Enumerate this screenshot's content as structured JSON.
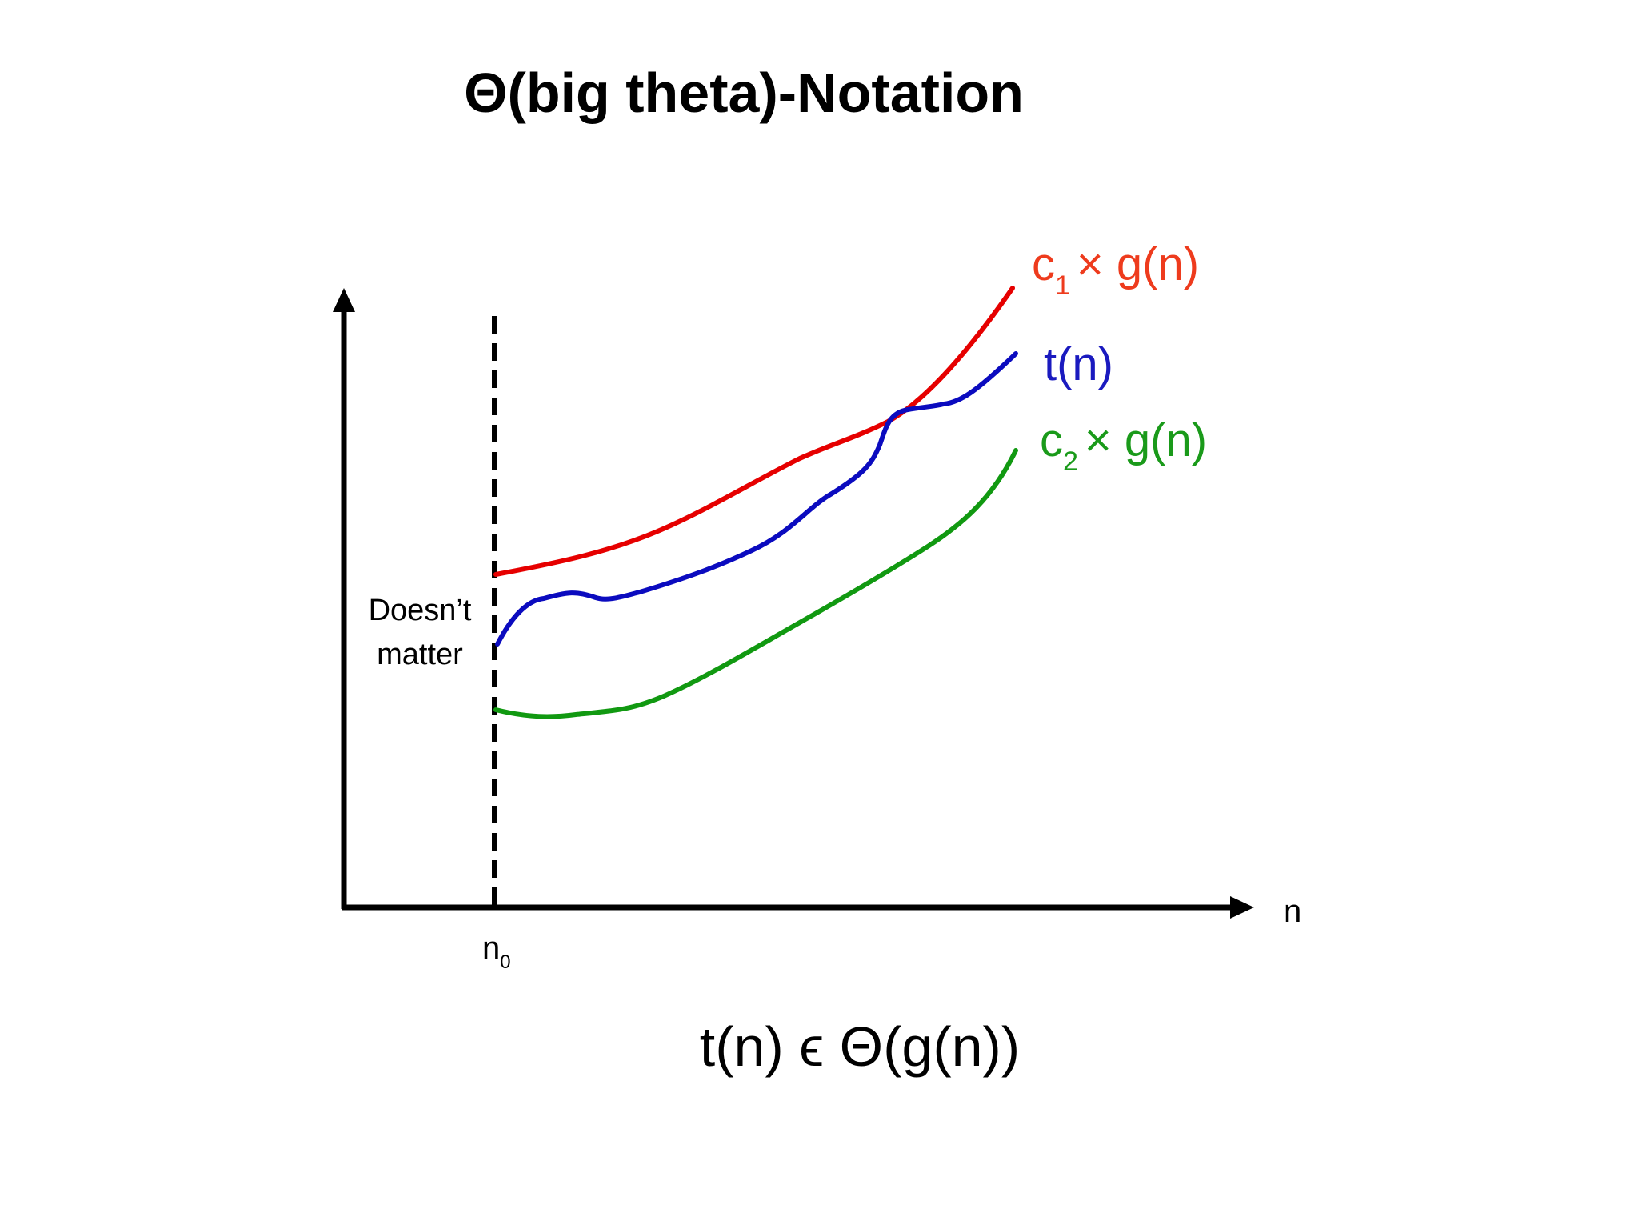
{
  "title": "Θ(big theta)-Notation",
  "formula": "t(n) ϵ Θ(g(n))",
  "axis": {
    "x_label": "n",
    "threshold_label_base": "n",
    "threshold_label_sub": "0"
  },
  "annotation": {
    "line1": "Doesn’t",
    "line2": "matter"
  },
  "curves": {
    "upper": {
      "label_c": "c",
      "label_sub": "1",
      "label_rest": "× g(n)",
      "color": "#e60000",
      "label_color": "#ee3b1d"
    },
    "middle": {
      "label": "t(n)",
      "color": "#0b0bbf",
      "label_color": "#1a1abf"
    },
    "lower": {
      "label_c": "c",
      "label_sub": "2",
      "label_rest": "× g(n)",
      "color": "#119911",
      "label_color": "#1a9a1a"
    }
  },
  "colors": {
    "axis": "#000000",
    "text": "#000000"
  }
}
